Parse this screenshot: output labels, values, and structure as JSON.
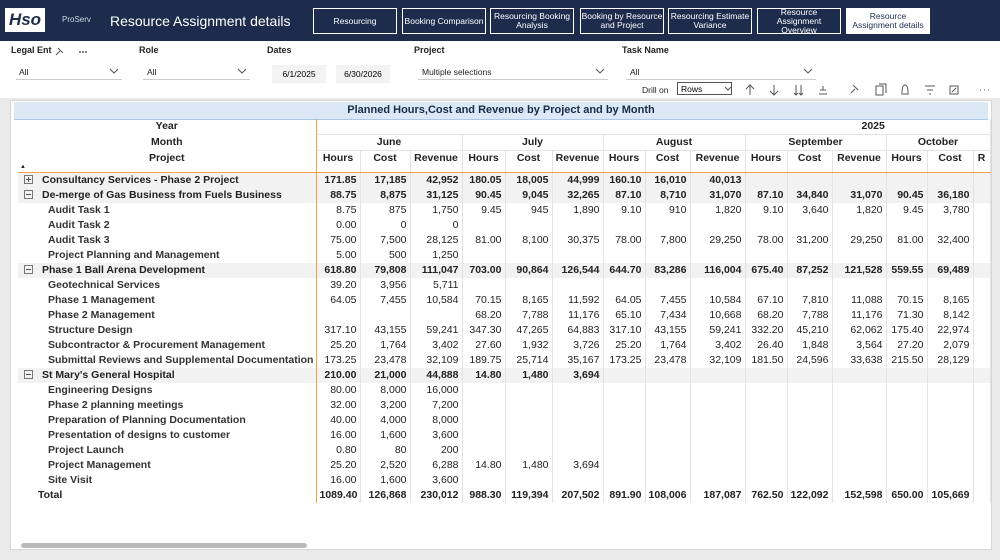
{
  "header": {
    "logo": "Hso",
    "brand": "ProServ",
    "title": "Resource Assignment details",
    "tabs": [
      "Resourcing",
      "Booking Comparison",
      "Resourcing Booking Analysis",
      "Booking by Resource and Project",
      "Resourcing Estimate Variance",
      "Resource Assignment Overview",
      "Resource Assignment details"
    ],
    "active_tab": 6
  },
  "filters": {
    "legal_entity": {
      "label": "Legal Ent",
      "value": "All"
    },
    "role": {
      "label": "Role",
      "value": "All"
    },
    "dates": {
      "label": "Dates",
      "start": "6/1/2025",
      "end": "6/30/2026"
    },
    "project": {
      "label": "Project",
      "value": "Multiple selections"
    },
    "task_name": {
      "label": "Task Name",
      "value": "All"
    }
  },
  "toolbar": {
    "drill_label": "Drill on",
    "drill_value": "Rows"
  },
  "table": {
    "title": "Planned Hours,Cost and Revenue by Project and by Month",
    "row_headers": [
      "Year",
      "Month",
      "Project"
    ],
    "year": "2025",
    "months": [
      "June",
      "July",
      "August",
      "September",
      "October"
    ],
    "measures": [
      "Hours",
      "Cost",
      "Revenue",
      "Hours",
      "Cost",
      "Revenue",
      "Hours",
      "Cost",
      "Revenue",
      "Hours",
      "Cost",
      "Revenue",
      "Hours",
      "Cost",
      "R"
    ],
    "projects": [
      {
        "name": "Consultancy Services - Phase 2 Project",
        "expanded": false,
        "cells": [
          "171.85",
          "17,185",
          "42,952",
          "180.05",
          "18,005",
          "44,999",
          "160.10",
          "16,010",
          "40,013",
          null,
          null,
          null,
          null,
          null
        ],
        "tasks": []
      },
      {
        "name": "De-merge of Gas Business from Fuels Business",
        "expanded": true,
        "cells": [
          "88.75",
          "8,875",
          "31,125",
          "90.45",
          "9,045",
          "32,265",
          "87.10",
          "8,710",
          "31,070",
          "87.10",
          "34,840",
          "31,070",
          "90.45",
          "36,180"
        ],
        "tasks": [
          {
            "name": "Audit Task 1",
            "cells": [
              "8.75",
              "875",
              "1,750",
              "9.45",
              "945",
              "1,890",
              "9.10",
              "910",
              "1,820",
              "9.10",
              "3,640",
              "1,820",
              "9.45",
              "3,780"
            ]
          },
          {
            "name": "Audit Task 2",
            "cells": [
              "0.00",
              "0",
              "0",
              null,
              null,
              null,
              null,
              null,
              null,
              null,
              null,
              null,
              null,
              null
            ]
          },
          {
            "name": "Audit Task 3",
            "cells": [
              "75.00",
              "7,500",
              "28,125",
              "81.00",
              "8,100",
              "30,375",
              "78.00",
              "7,800",
              "29,250",
              "78.00",
              "31,200",
              "29,250",
              "81.00",
              "32,400"
            ]
          },
          {
            "name": "Project Planning and Management",
            "cells": [
              "5.00",
              "500",
              "1,250",
              null,
              null,
              null,
              null,
              null,
              null,
              null,
              null,
              null,
              null,
              null
            ]
          }
        ]
      },
      {
        "name": "Phase 1 Ball Arena Development",
        "expanded": true,
        "cells": [
          "618.80",
          "79,808",
          "111,047",
          "703.00",
          "90,864",
          "126,544",
          "644.70",
          "83,286",
          "116,004",
          "675.40",
          "87,252",
          "121,528",
          "559.55",
          "69,489"
        ],
        "tasks": [
          {
            "name": "Geotechnical Services",
            "cells": [
              "39.20",
              "3,956",
              "5,711",
              null,
              null,
              null,
              null,
              null,
              null,
              null,
              null,
              null,
              null,
              null
            ]
          },
          {
            "name": "Phase 1 Management",
            "cells": [
              "64.05",
              "7,455",
              "10,584",
              "70.15",
              "8,165",
              "11,592",
              "64.05",
              "7,455",
              "10,584",
              "67.10",
              "7,810",
              "11,088",
              "70.15",
              "8,165"
            ]
          },
          {
            "name": "Phase 2 Management",
            "cells": [
              null,
              null,
              null,
              "68.20",
              "7,788",
              "11,176",
              "65.10",
              "7,434",
              "10,668",
              "68.20",
              "7,788",
              "11,176",
              "71.30",
              "8,142"
            ]
          },
          {
            "name": "Structure Design",
            "cells": [
              "317.10",
              "43,155",
              "59,241",
              "347.30",
              "47,265",
              "64,883",
              "317.10",
              "43,155",
              "59,241",
              "332.20",
              "45,210",
              "62,062",
              "175.40",
              "22,974"
            ]
          },
          {
            "name": "Subcontractor & Procurement Management",
            "cells": [
              "25.20",
              "1,764",
              "3,402",
              "27.60",
              "1,932",
              "3,726",
              "25.20",
              "1,764",
              "3,402",
              "26.40",
              "1,848",
              "3,564",
              "27.20",
              "2,079"
            ]
          },
          {
            "name": "Submittal Reviews and Supplemental Documentation",
            "cells": [
              "173.25",
              "23,478",
              "32,109",
              "189.75",
              "25,714",
              "35,167",
              "173.25",
              "23,478",
              "32,109",
              "181.50",
              "24,596",
              "33,638",
              "215.50",
              "28,129"
            ]
          }
        ]
      },
      {
        "name": "St Mary's General Hospital",
        "expanded": true,
        "cells": [
          "210.00",
          "21,000",
          "44,888",
          "14.80",
          "1,480",
          "3,694",
          null,
          null,
          null,
          null,
          null,
          null,
          null,
          null
        ],
        "tasks": [
          {
            "name": "Engineering Designs",
            "cells": [
              "80.00",
              "8,000",
              "16,000",
              null,
              null,
              null,
              null,
              null,
              null,
              null,
              null,
              null,
              null,
              null
            ]
          },
          {
            "name": "Phase 2 planning meetings",
            "cells": [
              "32.00",
              "3,200",
              "7,200",
              null,
              null,
              null,
              null,
              null,
              null,
              null,
              null,
              null,
              null,
              null
            ]
          },
          {
            "name": "Preparation of Planning Documentation",
            "cells": [
              "40.00",
              "4,000",
              "8,000",
              null,
              null,
              null,
              null,
              null,
              null,
              null,
              null,
              null,
              null,
              null
            ]
          },
          {
            "name": "Presentation of designs to customer",
            "cells": [
              "16.00",
              "1,600",
              "3,600",
              null,
              null,
              null,
              null,
              null,
              null,
              null,
              null,
              null,
              null,
              null
            ]
          },
          {
            "name": "Project Launch",
            "cells": [
              "0.80",
              "80",
              "200",
              null,
              null,
              null,
              null,
              null,
              null,
              null,
              null,
              null,
              null,
              null
            ]
          },
          {
            "name": "Project Management",
            "cells": [
              "25.20",
              "2,520",
              "6,288",
              "14.80",
              "1,480",
              "3,694",
              null,
              null,
              null,
              null,
              null,
              null,
              null,
              null
            ]
          },
          {
            "name": "Site Visit",
            "cells": [
              "16.00",
              "1,600",
              "3,600",
              null,
              null,
              null,
              null,
              null,
              null,
              null,
              null,
              null,
              null,
              null
            ]
          }
        ]
      }
    ],
    "total": {
      "label": "Total",
      "cells": [
        "1089.40",
        "126,868",
        "230,012",
        "988.30",
        "119,394",
        "207,502",
        "891.90",
        "108,006",
        "187,087",
        "762.50",
        "122,092",
        "152,598",
        "650.00",
        "105,669"
      ]
    }
  }
}
